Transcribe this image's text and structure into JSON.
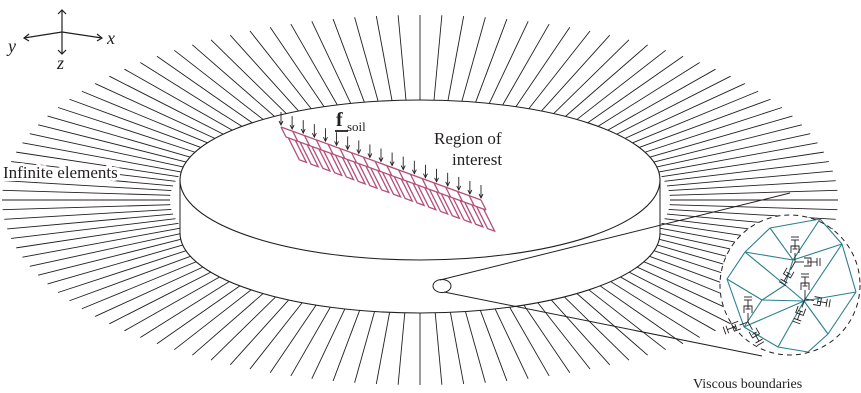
{
  "axes": {
    "x": "x",
    "y": "y",
    "z": "z"
  },
  "labels": {
    "force": "f",
    "force_subscript": "soil",
    "region": [
      "Region of",
      "interest"
    ],
    "infinite": "Infinite elements",
    "viscous": "Viscous boundaries"
  },
  "colors": {
    "lines": "#231f20",
    "building": "#b4507a",
    "mesh": "#2a7f8f"
  }
}
